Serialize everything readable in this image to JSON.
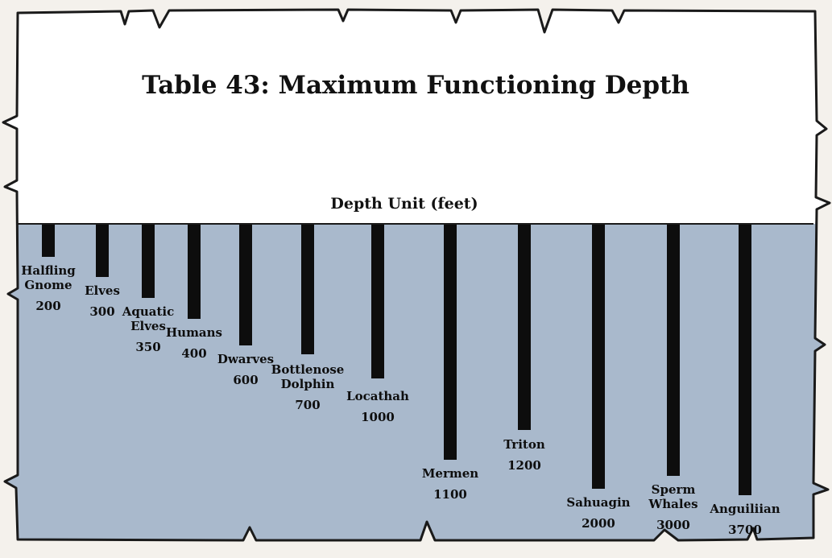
{
  "title": "Table 43: Maximum Functioning Depth",
  "axis_label": "Depth Unit (feet)",
  "colors": {
    "paper": "#ffffff",
    "water": "#a9b9cc",
    "bar": "#0d0d0d",
    "outline": "#1a1a1a"
  },
  "chart_data": {
    "type": "bar",
    "orientation": "vertical-downward",
    "title": "Table 43: Maximum Functioning Depth",
    "xlabel": "",
    "ylabel": "Depth Unit (feet)",
    "categories": [
      "Halfling Gnome",
      "Elves",
      "Aquatic Elves",
      "Humans",
      "Dwarves",
      "Bottlenose Dolphin",
      "Locathah",
      "Mermen",
      "Triton",
      "Sahuagin",
      "Sperm Whales",
      "Anguiliian"
    ],
    "label_lines": [
      [
        "Halfling",
        "Gnome"
      ],
      [
        "Elves"
      ],
      [
        "Aquatic",
        "Elves"
      ],
      [
        "Humans"
      ],
      [
        "Dwarves"
      ],
      [
        "Bottlenose",
        "Dolphin"
      ],
      [
        "Locathah"
      ],
      [
        "Mermen"
      ],
      [
        "Triton"
      ],
      [
        "Sahuagin"
      ],
      [
        "Sperm",
        "Whales"
      ],
      [
        "Anguiliian"
      ]
    ],
    "values": [
      200,
      300,
      350,
      400,
      600,
      700,
      1000,
      1100,
      1200,
      2000,
      3000,
      3700
    ],
    "value_labels": [
      "200",
      "300",
      "350",
      "400",
      "600",
      "700",
      "1000",
      "1100",
      "1200",
      "2000",
      "3000",
      "3700"
    ],
    "grid": false,
    "legend": "none"
  }
}
